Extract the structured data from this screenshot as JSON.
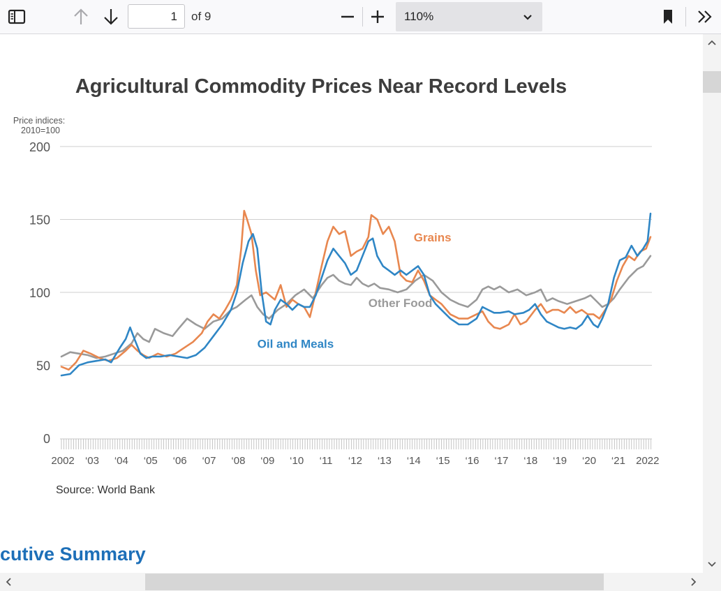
{
  "toolbar": {
    "page_current": "1",
    "page_total_label": "of 9",
    "zoom": "110%"
  },
  "document": {
    "next_section_heading": "cutive Summary",
    "source_note": "Source: World Bank"
  },
  "colors": {
    "grains": "#e8874f",
    "oil_meals": "#2f86c5",
    "other_food": "#9a9a9a",
    "accent_heading": "#1d6fb8"
  },
  "chart_data": {
    "type": "line",
    "title": "Agricultural Commodity Prices Near Record Levels",
    "ylabel_line1": "Price indices:",
    "ylabel_line2": "2010=100",
    "ylim": [
      0,
      200
    ],
    "yticks": [
      0,
      50,
      100,
      150,
      200
    ],
    "xlim": [
      2002.0,
      2022.15
    ],
    "xtick_labels": [
      {
        "x": 2002,
        "label": "2002"
      },
      {
        "x": 2003,
        "label": "‘03"
      },
      {
        "x": 2004,
        "label": "‘04"
      },
      {
        "x": 2005,
        "label": "‘05"
      },
      {
        "x": 2006,
        "label": "‘06"
      },
      {
        "x": 2007,
        "label": "‘07"
      },
      {
        "x": 2008,
        "label": "‘08"
      },
      {
        "x": 2009,
        "label": "‘09"
      },
      {
        "x": 2010,
        "label": "‘10"
      },
      {
        "x": 2011,
        "label": "‘11"
      },
      {
        "x": 2012,
        "label": "‘12"
      },
      {
        "x": 2013,
        "label": "‘13"
      },
      {
        "x": 2014,
        "label": "‘14"
      },
      {
        "x": 2015,
        "label": "‘15"
      },
      {
        "x": 2016,
        "label": "‘16"
      },
      {
        "x": 2017,
        "label": "‘17"
      },
      {
        "x": 2018,
        "label": "‘18"
      },
      {
        "x": 2019,
        "label": "‘19"
      },
      {
        "x": 2020,
        "label": "‘20"
      },
      {
        "x": 2021,
        "label": "‘21"
      },
      {
        "x": 2022,
        "label": "2022"
      }
    ],
    "grid": "horizontal",
    "series": [
      {
        "name": "Grains",
        "key": "grains",
        "points": [
          [
            2002.0,
            49
          ],
          [
            2002.25,
            47
          ],
          [
            2002.5,
            52
          ],
          [
            2002.75,
            60
          ],
          [
            2003.0,
            58
          ],
          [
            2003.3,
            55
          ],
          [
            2003.6,
            53
          ],
          [
            2003.9,
            55
          ],
          [
            2004.2,
            60
          ],
          [
            2004.4,
            64
          ],
          [
            2004.6,
            60
          ],
          [
            2004.8,
            57
          ],
          [
            2005.0,
            55
          ],
          [
            2005.3,
            58
          ],
          [
            2005.6,
            56
          ],
          [
            2005.9,
            58
          ],
          [
            2006.2,
            62
          ],
          [
            2006.5,
            66
          ],
          [
            2006.8,
            72
          ],
          [
            2007.0,
            80
          ],
          [
            2007.2,
            85
          ],
          [
            2007.4,
            82
          ],
          [
            2007.6,
            88
          ],
          [
            2007.8,
            95
          ],
          [
            2008.0,
            105
          ],
          [
            2008.15,
            130
          ],
          [
            2008.25,
            156
          ],
          [
            2008.35,
            150
          ],
          [
            2008.5,
            140
          ],
          [
            2008.65,
            115
          ],
          [
            2008.8,
            98
          ],
          [
            2009.0,
            100
          ],
          [
            2009.3,
            95
          ],
          [
            2009.5,
            105
          ],
          [
            2009.7,
            90
          ],
          [
            2009.9,
            95
          ],
          [
            2010.1,
            92
          ],
          [
            2010.3,
            90
          ],
          [
            2010.5,
            83
          ],
          [
            2010.7,
            100
          ],
          [
            2010.9,
            118
          ],
          [
            2011.1,
            135
          ],
          [
            2011.3,
            145
          ],
          [
            2011.5,
            140
          ],
          [
            2011.7,
            142
          ],
          [
            2011.9,
            125
          ],
          [
            2012.1,
            128
          ],
          [
            2012.3,
            130
          ],
          [
            2012.5,
            138
          ],
          [
            2012.6,
            153
          ],
          [
            2012.8,
            150
          ],
          [
            2013.0,
            140
          ],
          [
            2013.2,
            145
          ],
          [
            2013.4,
            135
          ],
          [
            2013.6,
            112
          ],
          [
            2013.8,
            108
          ],
          [
            2014.0,
            107
          ],
          [
            2014.2,
            115
          ],
          [
            2014.4,
            108
          ],
          [
            2014.6,
            98
          ],
          [
            2014.8,
            95
          ],
          [
            2015.0,
            92
          ],
          [
            2015.3,
            85
          ],
          [
            2015.6,
            82
          ],
          [
            2015.9,
            82
          ],
          [
            2016.2,
            85
          ],
          [
            2016.4,
            87
          ],
          [
            2016.6,
            80
          ],
          [
            2016.8,
            76
          ],
          [
            2017.0,
            75
          ],
          [
            2017.3,
            78
          ],
          [
            2017.5,
            85
          ],
          [
            2017.7,
            78
          ],
          [
            2017.9,
            80
          ],
          [
            2018.2,
            88
          ],
          [
            2018.4,
            92
          ],
          [
            2018.6,
            86
          ],
          [
            2018.8,
            88
          ],
          [
            2019.0,
            88
          ],
          [
            2019.2,
            86
          ],
          [
            2019.4,
            90
          ],
          [
            2019.6,
            86
          ],
          [
            2019.8,
            88
          ],
          [
            2020.0,
            85
          ],
          [
            2020.2,
            85
          ],
          [
            2020.4,
            82
          ],
          [
            2020.6,
            88
          ],
          [
            2020.8,
            95
          ],
          [
            2021.0,
            108
          ],
          [
            2021.2,
            118
          ],
          [
            2021.4,
            125
          ],
          [
            2021.6,
            122
          ],
          [
            2021.8,
            128
          ],
          [
            2022.0,
            130
          ],
          [
            2022.15,
            138
          ]
        ]
      },
      {
        "name": "Oil and Meals",
        "key": "oil_meals",
        "points": [
          [
            2002.0,
            43
          ],
          [
            2002.3,
            44
          ],
          [
            2002.6,
            50
          ],
          [
            2002.9,
            52
          ],
          [
            2003.2,
            53
          ],
          [
            2003.5,
            54
          ],
          [
            2003.7,
            52
          ],
          [
            2004.0,
            62
          ],
          [
            2004.2,
            68
          ],
          [
            2004.35,
            76
          ],
          [
            2004.5,
            68
          ],
          [
            2004.7,
            58
          ],
          [
            2004.9,
            55
          ],
          [
            2005.1,
            56
          ],
          [
            2005.4,
            56
          ],
          [
            2005.7,
            57
          ],
          [
            2006.0,
            56
          ],
          [
            2006.3,
            55
          ],
          [
            2006.6,
            57
          ],
          [
            2006.9,
            62
          ],
          [
            2007.2,
            70
          ],
          [
            2007.5,
            78
          ],
          [
            2007.8,
            88
          ],
          [
            2008.0,
            100
          ],
          [
            2008.2,
            120
          ],
          [
            2008.4,
            135
          ],
          [
            2008.55,
            140
          ],
          [
            2008.7,
            130
          ],
          [
            2008.85,
            100
          ],
          [
            2009.0,
            80
          ],
          [
            2009.15,
            78
          ],
          [
            2009.3,
            88
          ],
          [
            2009.5,
            95
          ],
          [
            2009.7,
            92
          ],
          [
            2009.9,
            88
          ],
          [
            2010.1,
            92
          ],
          [
            2010.3,
            90
          ],
          [
            2010.5,
            90
          ],
          [
            2010.7,
            98
          ],
          [
            2010.9,
            110
          ],
          [
            2011.1,
            122
          ],
          [
            2011.3,
            130
          ],
          [
            2011.5,
            125
          ],
          [
            2011.7,
            120
          ],
          [
            2011.9,
            112
          ],
          [
            2012.1,
            115
          ],
          [
            2012.3,
            125
          ],
          [
            2012.5,
            135
          ],
          [
            2012.65,
            137
          ],
          [
            2012.8,
            125
          ],
          [
            2013.0,
            118
          ],
          [
            2013.2,
            115
          ],
          [
            2013.4,
            112
          ],
          [
            2013.6,
            115
          ],
          [
            2013.8,
            112
          ],
          [
            2014.0,
            115
          ],
          [
            2014.2,
            118
          ],
          [
            2014.4,
            112
          ],
          [
            2014.6,
            98
          ],
          [
            2014.8,
            92
          ],
          [
            2015.0,
            88
          ],
          [
            2015.3,
            82
          ],
          [
            2015.6,
            78
          ],
          [
            2015.9,
            78
          ],
          [
            2016.2,
            82
          ],
          [
            2016.4,
            90
          ],
          [
            2016.6,
            88
          ],
          [
            2016.8,
            86
          ],
          [
            2017.0,
            86
          ],
          [
            2017.3,
            87
          ],
          [
            2017.5,
            85
          ],
          [
            2017.8,
            86
          ],
          [
            2018.0,
            88
          ],
          [
            2018.2,
            92
          ],
          [
            2018.4,
            85
          ],
          [
            2018.6,
            80
          ],
          [
            2018.8,
            78
          ],
          [
            2019.0,
            76
          ],
          [
            2019.2,
            75
          ],
          [
            2019.4,
            76
          ],
          [
            2019.6,
            75
          ],
          [
            2019.8,
            78
          ],
          [
            2020.0,
            84
          ],
          [
            2020.2,
            78
          ],
          [
            2020.35,
            76
          ],
          [
            2020.5,
            82
          ],
          [
            2020.7,
            92
          ],
          [
            2020.9,
            110
          ],
          [
            2021.1,
            122
          ],
          [
            2021.3,
            124
          ],
          [
            2021.5,
            132
          ],
          [
            2021.7,
            125
          ],
          [
            2021.9,
            130
          ],
          [
            2022.05,
            135
          ],
          [
            2022.15,
            154
          ]
        ]
      },
      {
        "name": "Other Food",
        "key": "other_food",
        "points": [
          [
            2002.0,
            56
          ],
          [
            2002.3,
            59
          ],
          [
            2002.6,
            58
          ],
          [
            2002.9,
            57
          ],
          [
            2003.2,
            55
          ],
          [
            2003.5,
            56
          ],
          [
            2003.8,
            58
          ],
          [
            2004.1,
            60
          ],
          [
            2004.4,
            65
          ],
          [
            2004.6,
            72
          ],
          [
            2004.8,
            68
          ],
          [
            2005.0,
            66
          ],
          [
            2005.2,
            75
          ],
          [
            2005.5,
            72
          ],
          [
            2005.8,
            70
          ],
          [
            2006.0,
            75
          ],
          [
            2006.3,
            82
          ],
          [
            2006.6,
            78
          ],
          [
            2006.9,
            75
          ],
          [
            2007.2,
            80
          ],
          [
            2007.5,
            82
          ],
          [
            2007.8,
            88
          ],
          [
            2008.0,
            90
          ],
          [
            2008.3,
            95
          ],
          [
            2008.5,
            98
          ],
          [
            2008.7,
            90
          ],
          [
            2008.9,
            85
          ],
          [
            2009.1,
            82
          ],
          [
            2009.4,
            88
          ],
          [
            2009.7,
            92
          ],
          [
            2010.0,
            98
          ],
          [
            2010.3,
            102
          ],
          [
            2010.6,
            96
          ],
          [
            2010.9,
            105
          ],
          [
            2011.1,
            110
          ],
          [
            2011.3,
            112
          ],
          [
            2011.5,
            108
          ],
          [
            2011.7,
            106
          ],
          [
            2011.9,
            105
          ],
          [
            2012.1,
            110
          ],
          [
            2012.3,
            106
          ],
          [
            2012.5,
            104
          ],
          [
            2012.7,
            106
          ],
          [
            2012.9,
            103
          ],
          [
            2013.2,
            102
          ],
          [
            2013.5,
            100
          ],
          [
            2013.8,
            102
          ],
          [
            2014.1,
            108
          ],
          [
            2014.4,
            112
          ],
          [
            2014.7,
            108
          ],
          [
            2015.0,
            100
          ],
          [
            2015.3,
            95
          ],
          [
            2015.6,
            92
          ],
          [
            2015.9,
            90
          ],
          [
            2016.2,
            95
          ],
          [
            2016.4,
            102
          ],
          [
            2016.6,
            104
          ],
          [
            2016.8,
            102
          ],
          [
            2017.0,
            104
          ],
          [
            2017.3,
            100
          ],
          [
            2017.6,
            102
          ],
          [
            2017.9,
            98
          ],
          [
            2018.2,
            100
          ],
          [
            2018.4,
            102
          ],
          [
            2018.6,
            94
          ],
          [
            2018.8,
            96
          ],
          [
            2019.0,
            94
          ],
          [
            2019.3,
            92
          ],
          [
            2019.6,
            94
          ],
          [
            2019.9,
            96
          ],
          [
            2020.1,
            98
          ],
          [
            2020.3,
            94
          ],
          [
            2020.5,
            90
          ],
          [
            2020.7,
            92
          ],
          [
            2020.9,
            96
          ],
          [
            2021.1,
            102
          ],
          [
            2021.4,
            110
          ],
          [
            2021.7,
            116
          ],
          [
            2021.9,
            118
          ],
          [
            2022.15,
            125
          ]
        ]
      }
    ],
    "annotations": [
      {
        "text": "Grains",
        "series": "grains",
        "x": 2014.05,
        "y": 135
      },
      {
        "text": "Other Food",
        "series": "other_food",
        "x": 2012.5,
        "y": 90
      },
      {
        "text": "Oil and Meals",
        "series": "oil_meals",
        "x": 2008.7,
        "y": 62
      }
    ],
    "source": "Source: World Bank"
  }
}
